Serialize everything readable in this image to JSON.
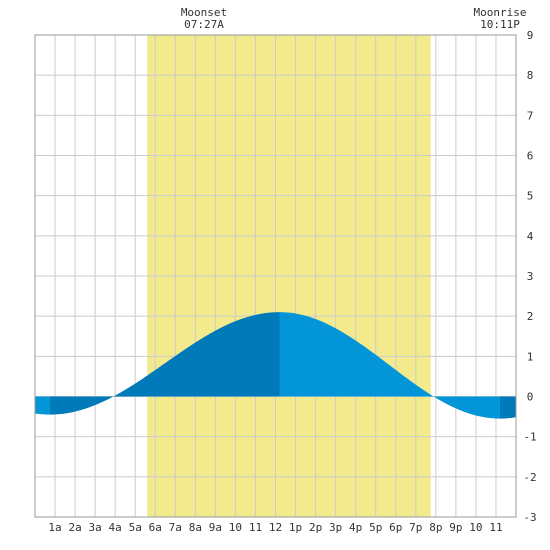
{
  "colors": {
    "background": "#ffffff",
    "grid": "#cccccc",
    "border": "#999999",
    "daylight": "#f2ea8c",
    "tide_rising": "#007ab8",
    "tide_falling": "#0296d8",
    "text": "#333333"
  },
  "moon": {
    "moonset_label": "Moonset",
    "moonset_time": "07:27A",
    "moonrise_label": "Moonrise",
    "moonrise_time": "10:11P"
  },
  "chart_data": {
    "type": "area",
    "title": "",
    "xlabel": "",
    "ylabel": "",
    "xlim": [
      0,
      24
    ],
    "ylim": [
      -3,
      9
    ],
    "grid": true,
    "y_ticks": [
      9,
      8,
      7,
      6,
      5,
      4,
      3,
      2,
      1,
      0,
      -1,
      -2,
      -3
    ],
    "x_tick_labels": [
      "1a",
      "2a",
      "3a",
      "4a",
      "5a",
      "6a",
      "7a",
      "8a",
      "9a",
      "10",
      "11",
      "12",
      "1p",
      "2p",
      "3p",
      "4p",
      "5p",
      "6p",
      "7p",
      "8p",
      "9p",
      "10",
      "11"
    ],
    "x_tick_hours": [
      1,
      2,
      3,
      4,
      5,
      6,
      7,
      8,
      9,
      10,
      11,
      12,
      13,
      14,
      15,
      16,
      17,
      18,
      19,
      20,
      21,
      22,
      23
    ],
    "daylight": {
      "start": 5.6,
      "end": 19.75
    },
    "low_tide_1": {
      "time": 0.75,
      "height": -0.45
    },
    "high_tide": {
      "time": 12.2,
      "height": 2.1
    },
    "low_tide_2": {
      "time": 23.2,
      "height": -0.55
    }
  }
}
